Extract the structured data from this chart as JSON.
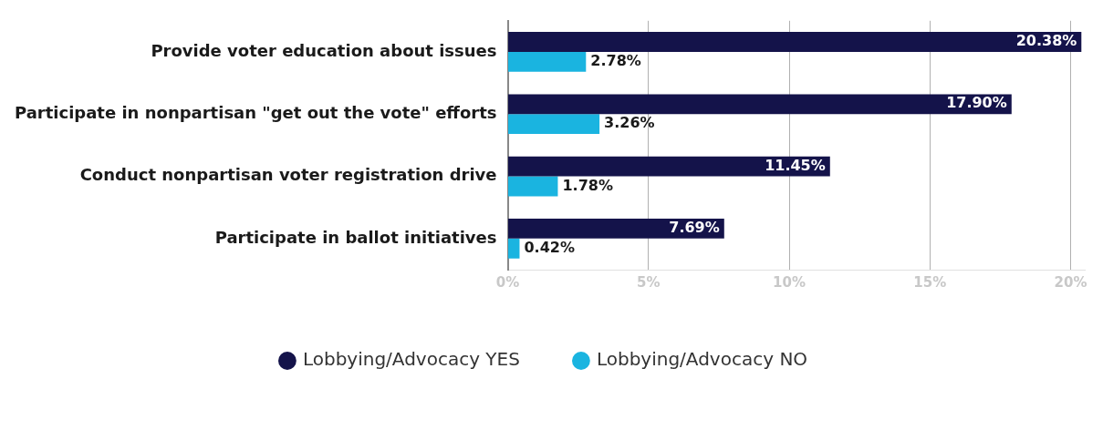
{
  "chart_data": {
    "type": "bar",
    "orientation": "horizontal",
    "categories": [
      "Provide voter education about issues",
      "Participate in nonpartisan \"get out the vote\" efforts",
      "Conduct nonpartisan voter registration drive",
      "Participate in ballot initiatives"
    ],
    "series": [
      {
        "name": "Lobbying/Advocacy YES",
        "color": "#14134a",
        "values": [
          20.38,
          17.9,
          11.45,
          7.69
        ],
        "value_labels": [
          "20.38%",
          "17.90%",
          "11.45%",
          "7.69%"
        ]
      },
      {
        "name": "Lobbying/Advocacy NO",
        "color": "#1ab4e0",
        "values": [
          2.78,
          3.26,
          1.78,
          0.42
        ],
        "value_labels": [
          "2.78%",
          "3.26%",
          "1.78%",
          "0.42%"
        ]
      }
    ],
    "xlim": [
      0,
      20.5
    ],
    "xticks": [
      {
        "value": 0,
        "label": "0%"
      },
      {
        "value": 5,
        "label": "5%"
      },
      {
        "value": 10,
        "label": "10%"
      },
      {
        "value": 15,
        "label": "15%"
      },
      {
        "value": 20,
        "label": "20%"
      }
    ],
    "grid": "x",
    "legend": "bottom",
    "marker": "circle"
  }
}
